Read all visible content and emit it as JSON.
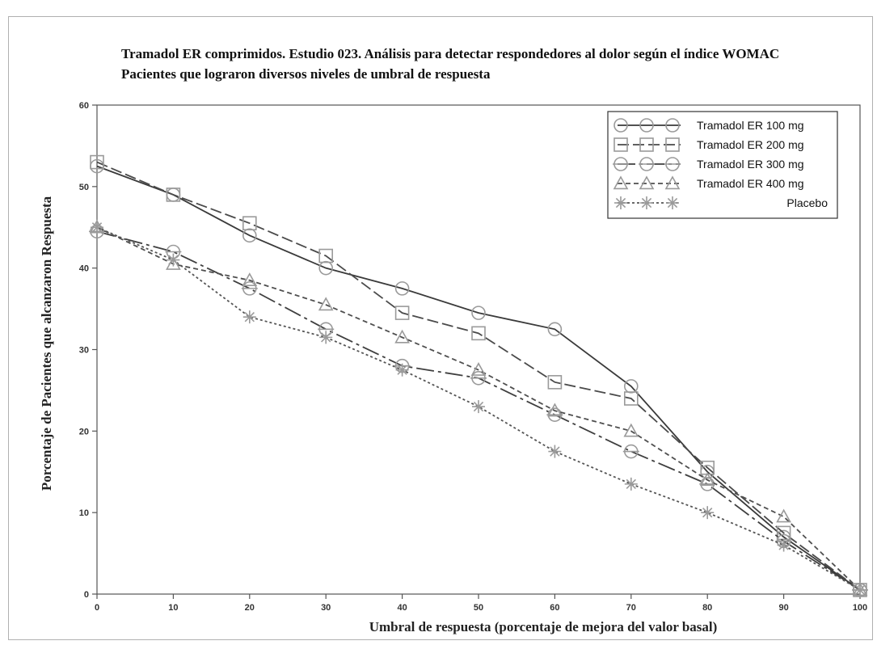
{
  "chart_data": {
    "type": "line",
    "title": "Tramadol ER comprimidos. Estudio 023. Análisis para detectar respondedores al dolor según el índice WOMAC",
    "subtitle": "Pacientes que lograron diversos niveles de umbral de respuesta",
    "xlabel": "Umbral de respuesta (porcentaje de mejora del valor basal)",
    "ylabel": "Porcentaje de Pacientes que alcanzaron Respuesta",
    "x": [
      0,
      10,
      20,
      30,
      40,
      50,
      60,
      70,
      80,
      90,
      100
    ],
    "xlim": [
      0,
      100
    ],
    "ylim": [
      0,
      60
    ],
    "xticks": [
      "0",
      "10",
      "20",
      "30",
      "40",
      "50",
      "60",
      "70",
      "80",
      "90",
      "100"
    ],
    "yticks": [
      "0",
      "10",
      "20",
      "30",
      "40",
      "50",
      "60"
    ],
    "grid": false,
    "legend_position": "top-right",
    "series": [
      {
        "name": "Tramadol ER 100 mg",
        "marker": "circle",
        "dash": "",
        "values": [
          52.5,
          49,
          44,
          40,
          37.5,
          34.5,
          32.5,
          25.5,
          15,
          7,
          0.5
        ]
      },
      {
        "name": "Tramadol ER 200 mg",
        "marker": "square",
        "dash": "14 5",
        "values": [
          53,
          49,
          45.5,
          41.5,
          34.5,
          32,
          26,
          24,
          15.5,
          7.5,
          0.5
        ]
      },
      {
        "name": "Tramadol ER 300 mg",
        "marker": "circle-cross",
        "dash": "22 5 4 5",
        "values": [
          44.5,
          42,
          37.5,
          32.5,
          28,
          26.5,
          22,
          17.5,
          13.5,
          6.5,
          0.5
        ]
      },
      {
        "name": "Tramadol ER 400 mg",
        "marker": "triangle",
        "dash": "6 4",
        "values": [
          45,
          40.5,
          38.5,
          35.5,
          31.5,
          27.5,
          22.5,
          20,
          14,
          9.5,
          0.5
        ]
      },
      {
        "name": "Placebo",
        "marker": "star",
        "dash": "3 3",
        "values": [
          45,
          41,
          34,
          31.5,
          27.5,
          23,
          17.5,
          13.5,
          10,
          6,
          0.5
        ]
      }
    ]
  }
}
